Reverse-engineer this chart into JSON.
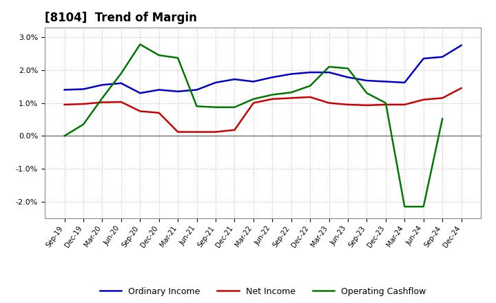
{
  "title": "[8104]  Trend of Margin",
  "x_labels": [
    "Sep-19",
    "Dec-19",
    "Mar-20",
    "Jun-20",
    "Sep-20",
    "Dec-20",
    "Mar-21",
    "Jun-21",
    "Sep-21",
    "Dec-21",
    "Mar-22",
    "Jun-22",
    "Sep-22",
    "Dec-22",
    "Mar-23",
    "Jun-23",
    "Sep-23",
    "Dec-23",
    "Mar-24",
    "Jun-24",
    "Sep-24",
    "Dec-24"
  ],
  "ordinary_income": [
    1.4,
    1.42,
    1.55,
    1.6,
    1.3,
    1.4,
    1.35,
    1.4,
    1.62,
    1.72,
    1.65,
    1.78,
    1.88,
    1.93,
    1.93,
    1.78,
    1.68,
    1.65,
    1.62,
    2.35,
    2.4,
    2.75
  ],
  "net_income": [
    0.95,
    0.97,
    1.02,
    1.03,
    0.75,
    0.7,
    0.12,
    0.12,
    0.12,
    0.18,
    1.0,
    1.12,
    1.15,
    1.18,
    1.0,
    0.95,
    0.93,
    0.95,
    0.95,
    1.1,
    1.15,
    1.45
  ],
  "operating_cashflow": [
    0.0,
    0.35,
    1.15,
    1.9,
    2.78,
    2.45,
    2.37,
    0.9,
    0.87,
    0.87,
    1.12,
    1.25,
    1.32,
    1.52,
    2.1,
    2.05,
    1.3,
    1.0,
    -2.15,
    -2.15,
    0.52,
    null
  ],
  "line_colors": {
    "ordinary_income": "#0000cc",
    "net_income": "#cc0000",
    "operating_cashflow": "#007700"
  },
  "ylim": [
    -2.5,
    3.3
  ],
  "yticks": [
    -2.0,
    -1.0,
    0.0,
    1.0,
    2.0,
    3.0
  ],
  "background_color": "#FFFFFF",
  "grid_color": "#BBBBBB",
  "title_fontsize": 12,
  "legend_labels": [
    "Ordinary Income",
    "Net Income",
    "Operating Cashflow"
  ]
}
